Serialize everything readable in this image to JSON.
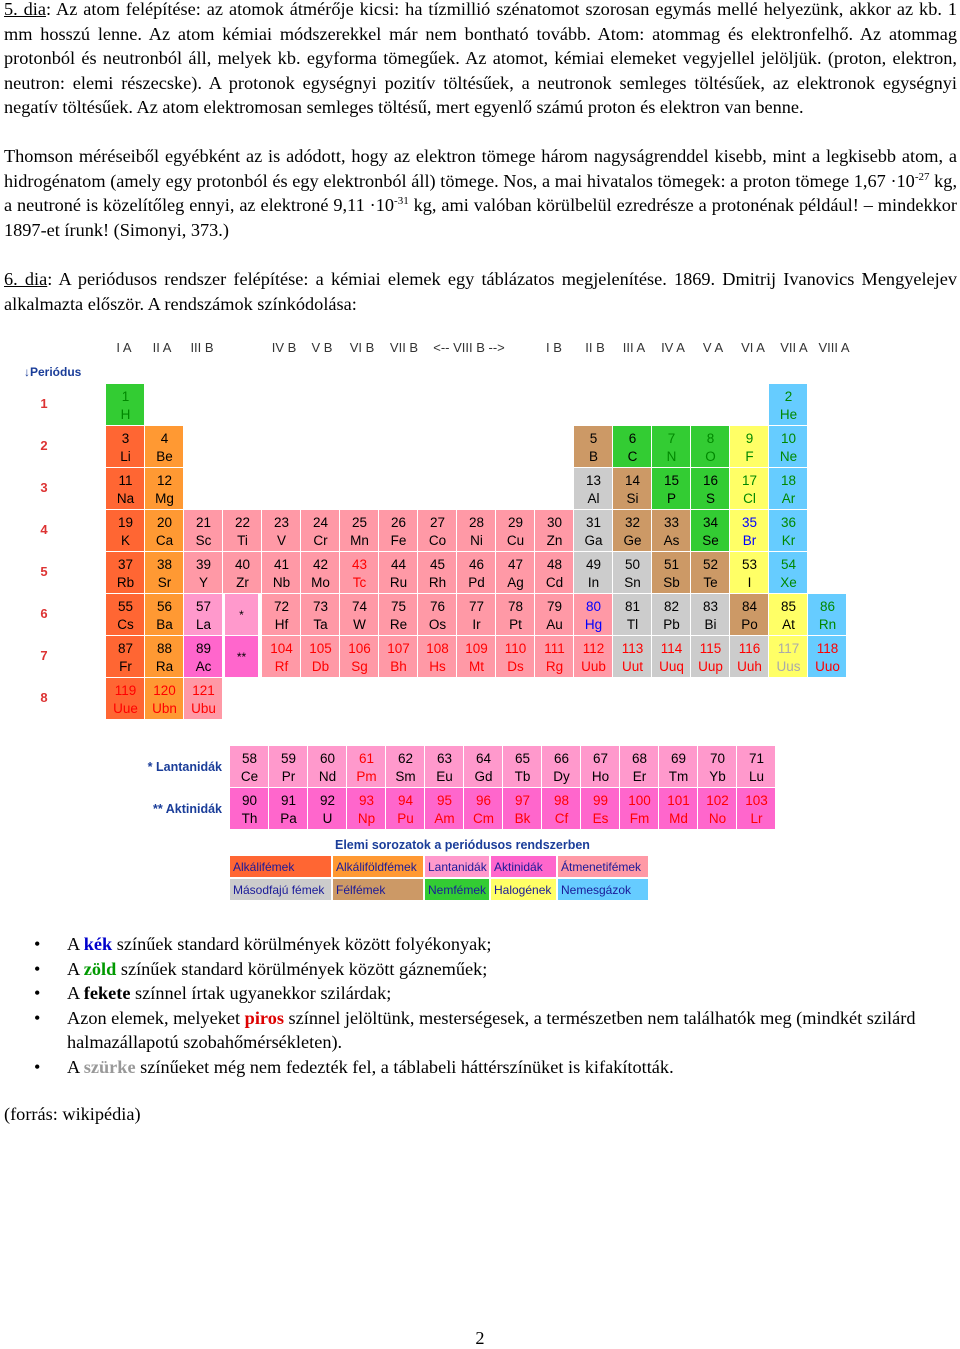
{
  "para1": {
    "link": "5. dia",
    "text": ": Az atom felépítése: az atomok átmérője kicsi: ha tízmillió szénatomot szorosan egymás mellé helyezünk, akkor az kb. 1 mm hosszú lenne. Az atom kémiai módszerekkel már nem bontható tovább. Atom: atommag és elektronfelhő. Az atommag protonból és neutronból áll, melyek kb. egyforma tömegűek. Az atomot, kémiai elemeket vegyjellel jelöljük. (proton, elektron, neutron: elemi részecske). A protonok egységnyi pozitív töltésűek, a neutronok semleges töltésűek, az elektronok egységnyi negatív töltésűek. Az atom elektromosan semleges töltésű, mert egyenlő számú proton és elektron van benne."
  },
  "para2": {
    "a": "Thomson méréseiből egyébként az is adódott, hogy az elektron tömege három nagyságrenddel kisebb, mint a legkisebb atom, a hidrogénatom (amely egy protonból és egy elektronból áll) tömege. Nos, a mai hivatalos tömegek: a proton tömege 1,67 ·10",
    "exp1": "-27",
    "b": " kg, a neutroné is közelítőleg ennyi, az elektroné 9,11 ·10",
    "exp2": "-31",
    "c": " kg, ami valóban körülbelül ezredrésze a protonénak például! – mindekkor 1897-et írunk! (Simonyi, 373.)"
  },
  "para3": {
    "link": "6. dia",
    "text": ": A periódusos rendszer felépítése: a kémiai elemek egy táblázatos megjelenítése. 1869. Dmitrij Ivanovics Mengyelejev alkalmazta először. A rendszámok színkódolása:"
  },
  "table": {
    "group_labels": [
      "I A",
      "II A",
      "III B",
      "IV B",
      "V B",
      "VI B",
      "VII B",
      "<-- VIII B -->",
      "I B",
      "II B",
      "III A",
      "IV A",
      "V A",
      "VI A",
      "VII A",
      "VIII A"
    ],
    "period_title": "Periódus",
    "period_numbers": [
      "1",
      "2",
      "3",
      "4",
      "5",
      "6",
      "7",
      "8"
    ],
    "lanthanide_label": "* Lantanidák",
    "actinide_label": "** Aktinidák",
    "placeholder_lan": "*",
    "placeholder_act": "**",
    "legend_title": "Elemi sorozatok a periódusos rendszerben",
    "legend": [
      {
        "label": "Alkálifémek",
        "color": "#ff6633"
      },
      {
        "label": "Alkáliföldfémek",
        "color": "#ff9933"
      },
      {
        "label": "Lantanidák",
        "color": "#ff99cc"
      },
      {
        "label": "Aktinidák",
        "color": "#ff66cc"
      },
      {
        "label": "Átmenetifémek",
        "color": "#ff99a6"
      },
      {
        "label": "Másodfajú fémek",
        "color": "#cccccc"
      },
      {
        "label": "Félfémek",
        "color": "#cc9966"
      },
      {
        "label": "Nemfémek",
        "color": "#33cc33"
      },
      {
        "label": "Halogének",
        "color": "#ffff66"
      },
      {
        "label": "Nemesgázok",
        "color": "#66ccff"
      }
    ],
    "state_colors": {
      "solid": "#000000",
      "liquid": "#0000ff",
      "gas": "#008800",
      "synthetic": "#ff0000",
      "undiscovered": "#aaaaaa"
    },
    "elements": [
      {
        "z": "1",
        "s": "H",
        "g": 1,
        "p": 1,
        "cat": "nonmetal",
        "st": "gas"
      },
      {
        "z": "2",
        "s": "He",
        "g": 16,
        "p": 1,
        "cat": "noble",
        "st": "gas"
      },
      {
        "z": "3",
        "s": "Li",
        "g": 1,
        "p": 2,
        "cat": "alkali",
        "st": "solid"
      },
      {
        "z": "4",
        "s": "Be",
        "g": 2,
        "p": 2,
        "cat": "alkaline",
        "st": "solid"
      },
      {
        "z": "5",
        "s": "B",
        "g": 11,
        "p": 2,
        "cat": "metalloid",
        "st": "solid"
      },
      {
        "z": "6",
        "s": "C",
        "g": 12,
        "p": 2,
        "cat": "nonmetal",
        "st": "solid"
      },
      {
        "z": "7",
        "s": "N",
        "g": 13,
        "p": 2,
        "cat": "nonmetal",
        "st": "gas"
      },
      {
        "z": "8",
        "s": "O",
        "g": 14,
        "p": 2,
        "cat": "nonmetal",
        "st": "gas"
      },
      {
        "z": "9",
        "s": "F",
        "g": 15,
        "p": 2,
        "cat": "halogen",
        "st": "gas"
      },
      {
        "z": "10",
        "s": "Ne",
        "g": 16,
        "p": 2,
        "cat": "noble",
        "st": "gas"
      },
      {
        "z": "11",
        "s": "Na",
        "g": 1,
        "p": 3,
        "cat": "alkali",
        "st": "solid"
      },
      {
        "z": "12",
        "s": "Mg",
        "g": 2,
        "p": 3,
        "cat": "alkaline",
        "st": "solid"
      },
      {
        "z": "13",
        "s": "Al",
        "g": 11,
        "p": 3,
        "cat": "poor",
        "st": "solid"
      },
      {
        "z": "14",
        "s": "Si",
        "g": 12,
        "p": 3,
        "cat": "metalloid",
        "st": "solid"
      },
      {
        "z": "15",
        "s": "P",
        "g": 13,
        "p": 3,
        "cat": "nonmetal",
        "st": "solid"
      },
      {
        "z": "16",
        "s": "S",
        "g": 14,
        "p": 3,
        "cat": "nonmetal",
        "st": "solid"
      },
      {
        "z": "17",
        "s": "Cl",
        "g": 15,
        "p": 3,
        "cat": "halogen",
        "st": "gas"
      },
      {
        "z": "18",
        "s": "Ar",
        "g": 16,
        "p": 3,
        "cat": "noble",
        "st": "gas"
      },
      {
        "z": "19",
        "s": "K",
        "g": 1,
        "p": 4,
        "cat": "alkali",
        "st": "solid"
      },
      {
        "z": "20",
        "s": "Ca",
        "g": 2,
        "p": 4,
        "cat": "alkaline",
        "st": "solid"
      },
      {
        "z": "21",
        "s": "Sc",
        "g": 3,
        "p": 4,
        "cat": "transition",
        "st": "solid"
      },
      {
        "z": "22",
        "s": "Ti",
        "g": 4,
        "p": 4,
        "cat": "transition",
        "st": "solid"
      },
      {
        "z": "23",
        "s": "V",
        "g": 5,
        "p": 4,
        "cat": "transition",
        "st": "solid"
      },
      {
        "z": "24",
        "s": "Cr",
        "g": 6,
        "p": 4,
        "cat": "transition",
        "st": "solid"
      },
      {
        "z": "25",
        "s": "Mn",
        "g": 7,
        "p": 4,
        "cat": "transition",
        "st": "solid"
      },
      {
        "z": "26",
        "s": "Fe",
        "g": 8,
        "p": 4,
        "cat": "transition",
        "st": "solid"
      },
      {
        "z": "27",
        "s": "Co",
        "g": 9,
        "p": 4,
        "cat": "transition",
        "st": "solid"
      },
      {
        "z": "28",
        "s": "Ni",
        "g": 10,
        "p": 4,
        "cat": "transition",
        "st": "solid"
      },
      {
        "z": "29",
        "s": "Cu",
        "g": 11,
        "p": 4,
        "cat": "transition",
        "st": "solid",
        "slot": 9
      },
      {
        "z": "30",
        "s": "Zn",
        "g": 12,
        "p": 4,
        "cat": "transition",
        "st": "solid",
        "slot": 10
      },
      {
        "z": "31",
        "s": "Ga",
        "g": 13,
        "p": 4,
        "cat": "poor",
        "st": "solid",
        "slot": 11
      },
      {
        "z": "32",
        "s": "Ge",
        "g": 14,
        "p": 4,
        "cat": "metalloid",
        "st": "solid",
        "slot": 12
      },
      {
        "z": "33",
        "s": "As",
        "g": 15,
        "p": 4,
        "cat": "metalloid",
        "st": "solid",
        "slot": 13
      },
      {
        "z": "34",
        "s": "Se",
        "g": 16,
        "p": 4,
        "cat": "nonmetal",
        "st": "solid",
        "slot": 14
      },
      {
        "z": "35",
        "s": "Br",
        "g": 17,
        "p": 4,
        "cat": "halogen",
        "st": "liquid",
        "slot": 15
      },
      {
        "z": "36",
        "s": "Kr",
        "g": 18,
        "p": 4,
        "cat": "noble",
        "st": "gas",
        "slot": 16
      }
    ],
    "rows_5_8": [
      [
        "37",
        "Rb",
        "alkali",
        "solid"
      ],
      [
        "38",
        "Sr",
        "alkaline",
        "solid"
      ],
      [
        "39",
        "Y",
        "transition",
        "solid"
      ],
      [
        "40",
        "Zr",
        "transition",
        "solid"
      ],
      [
        "41",
        "Nb",
        "transition",
        "solid"
      ],
      [
        "42",
        "Mo",
        "transition",
        "solid"
      ],
      [
        "43",
        "Tc",
        "transition",
        "synthetic"
      ],
      [
        "44",
        "Ru",
        "transition",
        "solid"
      ],
      [
        "45",
        "Rh",
        "transition",
        "solid"
      ],
      [
        "46",
        "Pd",
        "transition",
        "solid"
      ],
      [
        "47",
        "Ag",
        "transition",
        "solid"
      ],
      [
        "48",
        "Cd",
        "transition",
        "solid"
      ],
      [
        "49",
        "In",
        "poor",
        "solid"
      ],
      [
        "50",
        "Sn",
        "poor",
        "solid"
      ],
      [
        "51",
        "Sb",
        "metalloid",
        "solid"
      ],
      [
        "52",
        "Te",
        "metalloid",
        "solid"
      ],
      [
        "53",
        "I",
        "halogen",
        "solid"
      ],
      [
        "54",
        "Xe",
        "noble",
        "gas"
      ]
    ],
    "row6": [
      [
        "55",
        "Cs",
        "alkali",
        "solid"
      ],
      [
        "56",
        "Ba",
        "alkaline",
        "solid"
      ],
      [
        "57",
        "La",
        "lanthanide",
        "solid"
      ],
      [
        "PH1",
        "",
        "ph-lan",
        ""
      ],
      [
        "72",
        "Hf",
        "transition",
        "solid"
      ],
      [
        "73",
        "Ta",
        "transition",
        "solid"
      ],
      [
        "74",
        "W",
        "transition",
        "solid"
      ],
      [
        "75",
        "Re",
        "transition",
        "solid"
      ],
      [
        "76",
        "Os",
        "transition",
        "solid"
      ],
      [
        "77",
        "Ir",
        "transition",
        "solid"
      ],
      [
        "78",
        "Pt",
        "transition",
        "solid"
      ],
      [
        "79",
        "Au",
        "transition",
        "solid"
      ],
      [
        "80",
        "Hg",
        "transition",
        "liquid"
      ],
      [
        "81",
        "Tl",
        "poor",
        "solid"
      ],
      [
        "82",
        "Pb",
        "poor",
        "solid"
      ],
      [
        "83",
        "Bi",
        "poor",
        "solid"
      ],
      [
        "84",
        "Po",
        "metalloid",
        "solid"
      ],
      [
        "85",
        "At",
        "halogen",
        "solid"
      ],
      [
        "86",
        "Rn",
        "noble",
        "gas"
      ]
    ],
    "row7": [
      [
        "87",
        "Fr",
        "alkali",
        "solid"
      ],
      [
        "88",
        "Ra",
        "alkaline",
        "solid"
      ],
      [
        "89",
        "Ac",
        "actinide",
        "solid"
      ],
      [
        "PH2",
        "",
        "ph-act",
        ""
      ],
      [
        "104",
        "Rf",
        "transition",
        "synthetic"
      ],
      [
        "105",
        "Db",
        "transition",
        "synthetic"
      ],
      [
        "106",
        "Sg",
        "transition",
        "synthetic"
      ],
      [
        "107",
        "Bh",
        "transition",
        "synthetic"
      ],
      [
        "108",
        "Hs",
        "transition",
        "synthetic"
      ],
      [
        "109",
        "Mt",
        "transition",
        "synthetic"
      ],
      [
        "110",
        "Ds",
        "transition",
        "synthetic"
      ],
      [
        "111",
        "Rg",
        "transition",
        "synthetic"
      ],
      [
        "112",
        "Uub",
        "transition",
        "synthetic"
      ],
      [
        "113",
        "Uut",
        "poor",
        "synthetic"
      ],
      [
        "114",
        "Uuq",
        "poor",
        "synthetic"
      ],
      [
        "115",
        "Uup",
        "poor",
        "synthetic"
      ],
      [
        "116",
        "Uuh",
        "poor",
        "synthetic"
      ],
      [
        "117",
        "Uus",
        "halogen",
        "undiscovered"
      ],
      [
        "118",
        "Uuo",
        "noble",
        "synthetic"
      ]
    ],
    "row8": [
      [
        "119",
        "Uue",
        "alkali",
        "synthetic"
      ],
      [
        "120",
        "Ubn",
        "alkaline",
        "synthetic"
      ],
      [
        "121",
        "Ubu",
        "transition",
        "synthetic"
      ]
    ],
    "lanthanides": [
      [
        "58",
        "Ce",
        "solid"
      ],
      [
        "59",
        "Pr",
        "solid"
      ],
      [
        "60",
        "Nd",
        "solid"
      ],
      [
        "61",
        "Pm",
        "synthetic"
      ],
      [
        "62",
        "Sm",
        "solid"
      ],
      [
        "63",
        "Eu",
        "solid"
      ],
      [
        "64",
        "Gd",
        "solid"
      ],
      [
        "65",
        "Tb",
        "solid"
      ],
      [
        "66",
        "Dy",
        "solid"
      ],
      [
        "67",
        "Ho",
        "solid"
      ],
      [
        "68",
        "Er",
        "solid"
      ],
      [
        "69",
        "Tm",
        "solid"
      ],
      [
        "70",
        "Yb",
        "solid"
      ],
      [
        "71",
        "Lu",
        "solid"
      ]
    ],
    "actinides": [
      [
        "90",
        "Th",
        "solid"
      ],
      [
        "91",
        "Pa",
        "solid"
      ],
      [
        "92",
        "U",
        "solid"
      ],
      [
        "93",
        "Np",
        "synthetic"
      ],
      [
        "94",
        "Pu",
        "synthetic"
      ],
      [
        "95",
        "Am",
        "synthetic"
      ],
      [
        "96",
        "Cm",
        "synthetic"
      ],
      [
        "97",
        "Bk",
        "synthetic"
      ],
      [
        "98",
        "Cf",
        "synthetic"
      ],
      [
        "99",
        "Es",
        "synthetic"
      ],
      [
        "100",
        "Fm",
        "synthetic"
      ],
      [
        "101",
        "Md",
        "synthetic"
      ],
      [
        "102",
        "No",
        "synthetic"
      ],
      [
        "103",
        "Lr",
        "synthetic"
      ]
    ],
    "category_colors": {
      "alkali": "#ff6633",
      "alkaline": "#ff9933",
      "lanthanide": "#ff99cc",
      "actinide": "#ff66cc",
      "transition": "#ff99a6",
      "poor": "#cccccc",
      "metalloid": "#cc9966",
      "nonmetal": "#33cc33",
      "halogen": "#ffff66",
      "noble": "#66ccff",
      "ph-lan": "#ff99cc",
      "ph-act": "#ff66cc"
    }
  },
  "bullets": [
    {
      "pre": "A ",
      "kw": "kék",
      "kw_color": "#0000cc",
      "post": " színűek standard körülmények között folyékonyak;"
    },
    {
      "pre": "A ",
      "kw": "zöld",
      "kw_color": "#009900",
      "post": " színűek standard körülmények között gázneműek;"
    },
    {
      "pre": "A ",
      "kw": "fekete",
      "kw_color": "#000000",
      "post": " színnel írtak ugyanekkor szilárdak;"
    },
    {
      "pre": "Azon elemek, melyeket ",
      "kw": "piros",
      "kw_color": "#dd0000",
      "post": " színnel jelöltünk, mesterségesek, a természetben nem találhatók meg (mindkét szilárd halmazállapotú szobahőmérsékleten)."
    },
    {
      "pre": "A ",
      "kw": "szürke",
      "kw_color": "#999999",
      "post": " színűeket még nem fedezték fel, a táblabeli háttérszínüket is kifakították."
    }
  ],
  "source": "(forrás: wikipédia)",
  "page_number": "2"
}
